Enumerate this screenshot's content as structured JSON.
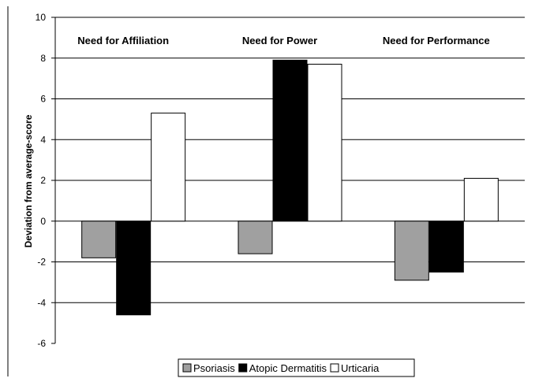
{
  "chart_data": {
    "type": "bar",
    "categories": [
      "Need for Affiliation",
      "Need for Power",
      "Need for Performance"
    ],
    "series": [
      {
        "name": "Psoriasis",
        "values": [
          -1.8,
          -1.6,
          -2.9
        ],
        "color": "#a0a0a0"
      },
      {
        "name": "Atopic Dermatitis",
        "values": [
          -4.6,
          7.9,
          -2.5
        ],
        "color": "#000000"
      },
      {
        "name": "Urticaria",
        "values": [
          5.3,
          7.7,
          2.1
        ],
        "color": "#ffffff"
      }
    ],
    "title": "",
    "xlabel": "",
    "ylabel": "Deviation from average-score",
    "ylim": [
      -6,
      10
    ],
    "yticks": [
      "10",
      "8",
      "6",
      "4",
      "2",
      "0",
      "-2",
      "-4",
      "-6"
    ],
    "grid": true,
    "legend_position": "bottom"
  }
}
